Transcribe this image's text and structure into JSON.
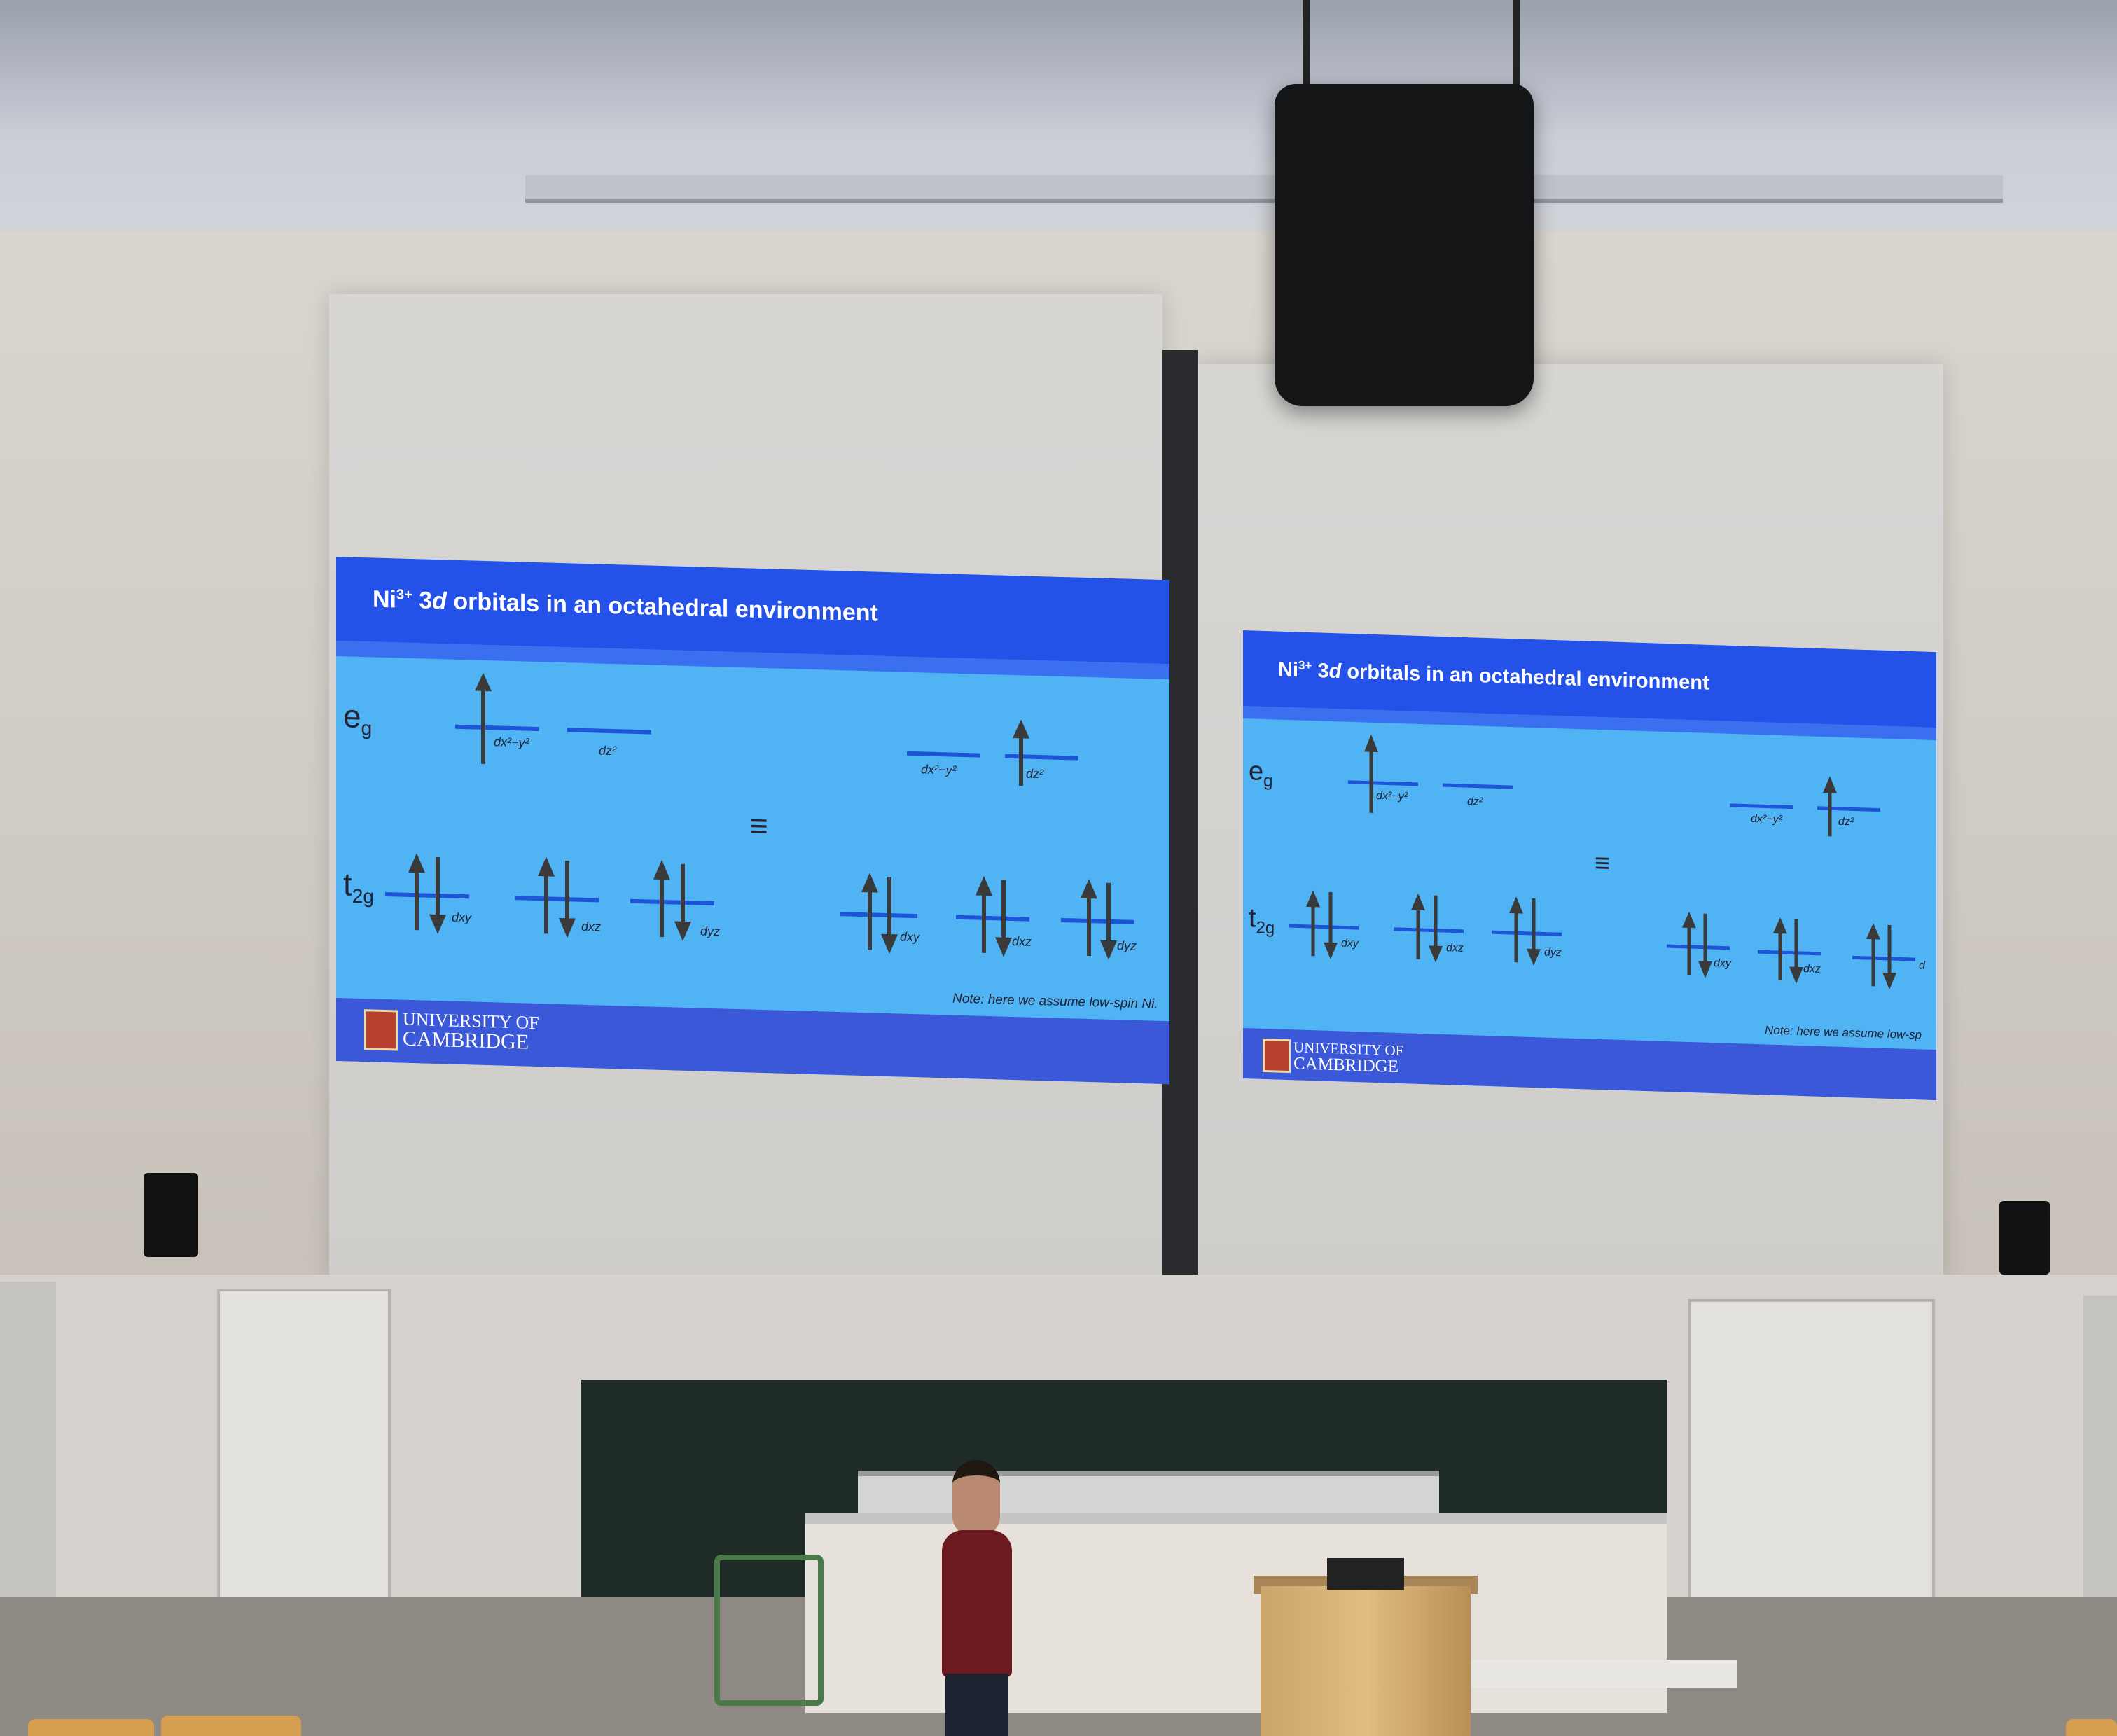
{
  "slide": {
    "title_main": "Ni",
    "title_sup": "3+",
    "title_rest": " 3",
    "title_d": "d",
    "title_tail": " orbitals in an octahedral environment",
    "eg_base": "e",
    "eg_sub": "g",
    "t2g_base": "t",
    "t2g_sub": "2g",
    "equiv": "≡",
    "dx2y2": "dx²−y²",
    "dz2": "dz²",
    "dxy": "dxy",
    "dxz": "dxz",
    "dyz": "dyz",
    "note_left": "Note: here we assume low-spin Ni.",
    "note_right": "Note: here we assume low-sp",
    "university_line1": "UNIVERSITY OF",
    "university_line2": "CAMBRIDGE",
    "right_cut_label": "d"
  },
  "colors": {
    "slide_bg": "#4fb3f4",
    "title_bar": "#2452e8",
    "footer_bar": "#3b58d8",
    "orbital_line": "#1e54d8",
    "arrow": "#3a3a3a"
  }
}
